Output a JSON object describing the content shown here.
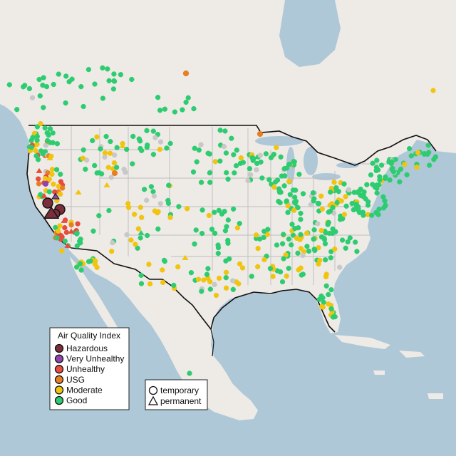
{
  "aqi_legend": {
    "title": "Air Quality Index",
    "items": [
      {
        "label": "Hazardous",
        "color": "#7a2e3a"
      },
      {
        "label": "Very Unhealthy",
        "color": "#8e44ad"
      },
      {
        "label": "Unhealthy",
        "color": "#e74c3c"
      },
      {
        "label": "USG",
        "color": "#e67e22"
      },
      {
        "label": "Moderate",
        "color": "#f1c40f"
      },
      {
        "label": "Good",
        "color": "#2ecc71"
      }
    ]
  },
  "type_legend": {
    "items": [
      {
        "label": "temporary",
        "shape": "circle"
      },
      {
        "label": "permanent",
        "shape": "triangle"
      }
    ]
  },
  "colors": {
    "land": "#eeeae6",
    "water": "#aec8d8",
    "border": "#111111",
    "state_lines": "#bdbdbd",
    "unknown_station": "#c8c8c8"
  }
}
